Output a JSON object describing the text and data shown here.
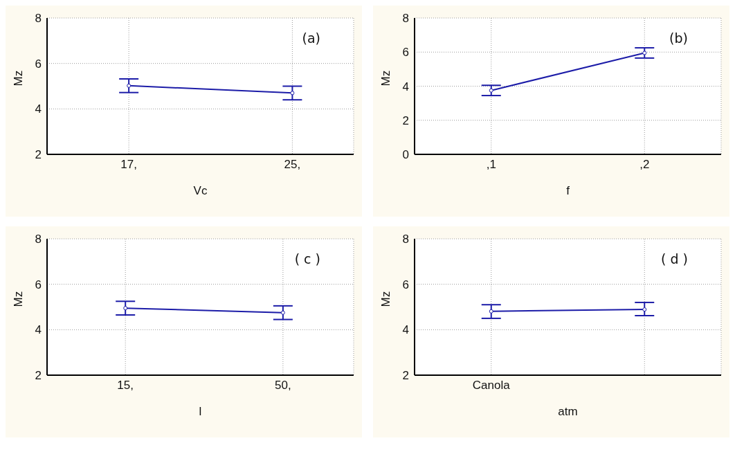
{
  "chart_data": [
    {
      "type": "line",
      "x": [
        17,
        25
      ],
      "xlim": [
        13,
        28
      ],
      "xticks": [
        {
          "value": 17,
          "label": "17,"
        },
        {
          "value": 25,
          "label": "25,"
        }
      ],
      "xlabel": "Vc",
      "ylabel": "Mz",
      "series": [
        {
          "color": "#1c1ca8",
          "values": [
            5.02,
            4.7
          ],
          "errors": [
            [
              4.72,
              5.32
            ],
            [
              4.4,
              5.0
            ]
          ]
        }
      ],
      "ylim": [
        2,
        8
      ],
      "yticks": [
        2,
        4,
        6,
        8
      ],
      "grid": true,
      "marker": "circle",
      "line_style": "solid",
      "annotations": [
        "(a)"
      ]
    },
    {
      "type": "line",
      "categories": [
        ",1",
        ",2"
      ],
      "xlabel": "f",
      "ylabel": "Mz",
      "series": [
        {
          "color": "#1c1ca8",
          "values": [
            3.75,
            5.95
          ],
          "errors": [
            [
              3.45,
              4.05
            ],
            [
              5.65,
              6.25
            ]
          ]
        }
      ],
      "ylim": [
        0,
        8
      ],
      "yticks": [
        0,
        2,
        4,
        6,
        8
      ],
      "grid": true,
      "marker": "circle",
      "line_style": "solid",
      "annotations": [
        "(b)"
      ]
    },
    {
      "type": "line",
      "x": [
        15,
        50
      ],
      "xlim": [
        -2.4,
        65.7
      ],
      "xticks": [
        {
          "value": 15,
          "label": "15,"
        },
        {
          "value": 50,
          "label": "50,"
        }
      ],
      "xlabel": "l",
      "ylabel": "Mz",
      "series": [
        {
          "color": "#1c1ca8",
          "values": [
            4.95,
            4.75
          ],
          "errors": [
            [
              4.65,
              5.25
            ],
            [
              4.45,
              5.05
            ]
          ]
        }
      ],
      "ylim": [
        2,
        8
      ],
      "yticks": [
        2,
        4,
        6,
        8
      ],
      "grid": true,
      "marker": "circle",
      "line_style": "solid",
      "annotations": [
        "( c )"
      ]
    },
    {
      "type": "line",
      "categories": [
        "Canola",
        null
      ],
      "xlabel": "atm",
      "ylabel": "Mz",
      "series": [
        {
          "color": "#1c1ca8",
          "values": [
            4.81,
            4.89
          ],
          "errors": [
            [
              4.5,
              5.1
            ],
            [
              4.62,
              5.2
            ]
          ]
        }
      ],
      "ylim": [
        2,
        8
      ],
      "yticks": [
        2,
        4,
        6,
        8
      ],
      "grid": true,
      "marker": "circle",
      "line_style": "solid",
      "annotations": [
        "( d )"
      ]
    }
  ]
}
